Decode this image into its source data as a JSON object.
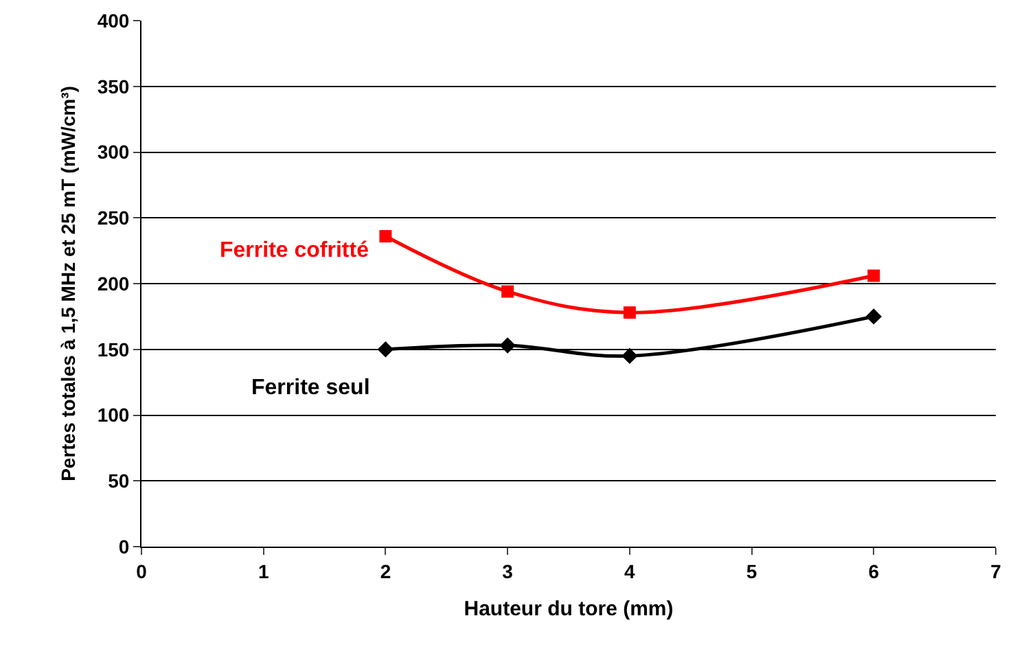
{
  "chart_data": {
    "type": "line",
    "xlabel": "Hauteur du tore (mm)",
    "ylabel": "Pertes totales à 1,5 MHz et 25 mT (mW/cm³)",
    "x": [
      2,
      3,
      4,
      6
    ],
    "series": [
      {
        "name": "Ferrite cofritté",
        "color": "#ff0000",
        "marker": "square",
        "values": [
          236,
          194,
          178,
          206
        ]
      },
      {
        "name": "Ferrite seul",
        "color": "#000000",
        "marker": "diamond",
        "values": [
          150,
          153,
          145,
          175
        ]
      }
    ],
    "xlim": [
      0,
      7
    ],
    "xticks": [
      0,
      1,
      2,
      3,
      4,
      5,
      6,
      7
    ],
    "ylim": [
      0,
      400
    ],
    "yticks": [
      0,
      50,
      100,
      150,
      200,
      250,
      300,
      350,
      400
    ],
    "grid": "y",
    "legend": false
  }
}
